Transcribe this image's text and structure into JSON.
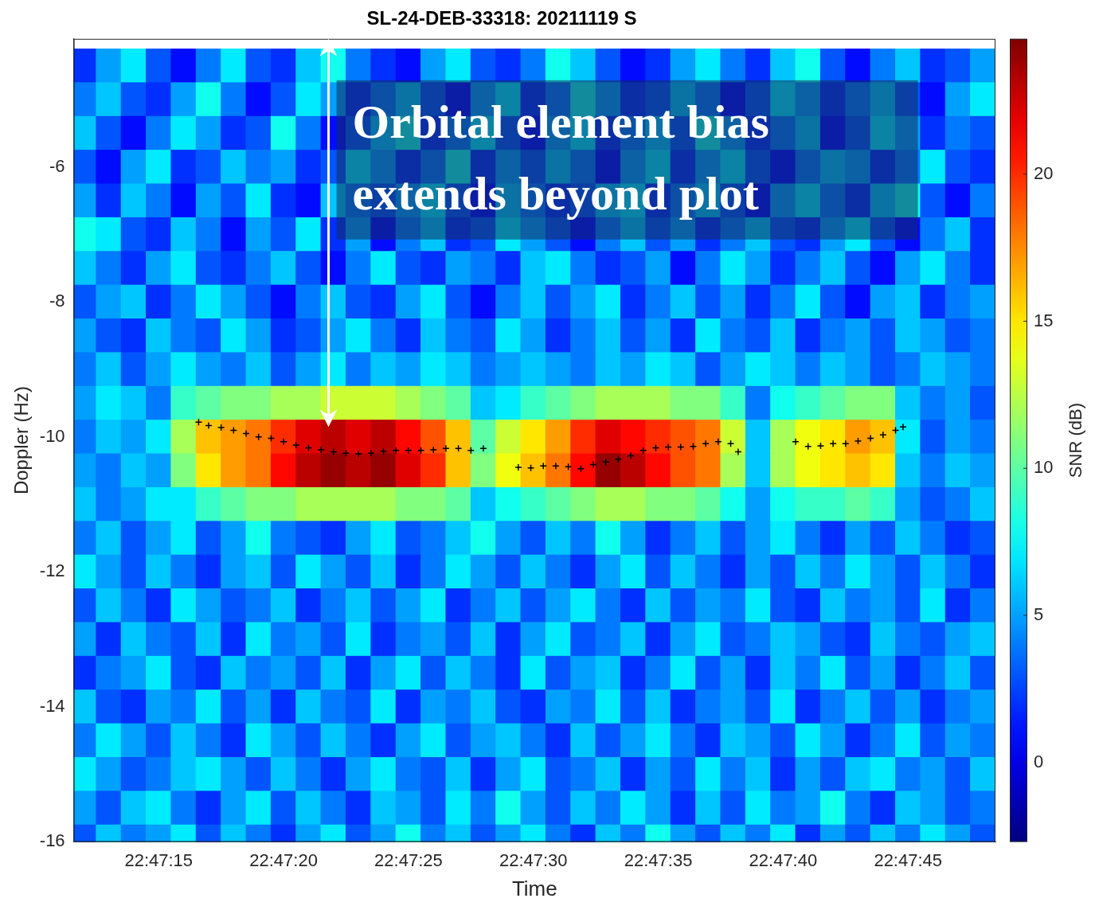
{
  "chart_data": {
    "type": "heatmap",
    "title": "SL-24-DEB-33318: 20211119 S",
    "x_label": "Time",
    "y_label": "Doppler (Hz)",
    "xlim": [
      11.6,
      48.5
    ],
    "xticks": [
      {
        "value": 15,
        "label": "22:47:15"
      },
      {
        "value": 20,
        "label": "22:47:20"
      },
      {
        "value": 25,
        "label": "22:47:25"
      },
      {
        "value": 30,
        "label": "22:47:30"
      },
      {
        "value": 35,
        "label": "22:47:35"
      },
      {
        "value": 40,
        "label": "22:47:40"
      },
      {
        "value": 45,
        "label": "22:47:45"
      }
    ],
    "ylim": [
      -16,
      -4.1
    ],
    "yticks": [
      -16,
      -14,
      -12,
      -10,
      -8,
      -6
    ],
    "grid": false,
    "heatmap": {
      "x": [
        12,
        13,
        14,
        15,
        16,
        17,
        18,
        19,
        20,
        21,
        22,
        23,
        24,
        25,
        26,
        27,
        28,
        29,
        30,
        31,
        32,
        33,
        34,
        35,
        36,
        37,
        38,
        39,
        40,
        41,
        42,
        43,
        44,
        45,
        46,
        47,
        48
      ],
      "y": [
        -4.5,
        -5,
        -5.5,
        -6,
        -6.5,
        -7,
        -7.5,
        -8,
        -8.5,
        -9,
        -9.5,
        -10,
        -10.5,
        -11,
        -11.5,
        -12,
        -12.5,
        -13,
        -13.5,
        -14,
        -14.5,
        -15,
        -15.5,
        -16
      ],
      "cells": [
        [
          2,
          5,
          7,
          3,
          1,
          4,
          7,
          3,
          2,
          6,
          8,
          4,
          2,
          1,
          5,
          7,
          3,
          2,
          4,
          8,
          6,
          3,
          1,
          2,
          5,
          7,
          4,
          2,
          6,
          8,
          3,
          1,
          4,
          6,
          2,
          3,
          5
        ],
        [
          4,
          6,
          3,
          2,
          5,
          8,
          4,
          1,
          3,
          7,
          5,
          2,
          4,
          6,
          3,
          1,
          5,
          7,
          2,
          4,
          8,
          5,
          2,
          3,
          6,
          4,
          1,
          3,
          7,
          5,
          2,
          4,
          6,
          3,
          1,
          5,
          7
        ],
        [
          6,
          3,
          1,
          4,
          7,
          5,
          2,
          3,
          8,
          4,
          1,
          3,
          6,
          8,
          2,
          4,
          7,
          3,
          1,
          5,
          7,
          2,
          4,
          6,
          3,
          8,
          5,
          2,
          4,
          6,
          1,
          3,
          7,
          5,
          2,
          4,
          3
        ],
        [
          3,
          1,
          5,
          7,
          2,
          3,
          6,
          4,
          5,
          2,
          3,
          7,
          5,
          2,
          4,
          8,
          2,
          5,
          3,
          6,
          4,
          1,
          5,
          7,
          2,
          5,
          7,
          3,
          1,
          4,
          6,
          5,
          2,
          4,
          7,
          3,
          2
        ],
        [
          5,
          2,
          6,
          4,
          1,
          5,
          3,
          7,
          2,
          1,
          6,
          4,
          3,
          5,
          7,
          3,
          1,
          6,
          4,
          2,
          3,
          6,
          7,
          2,
          4,
          6,
          3,
          1,
          5,
          7,
          4,
          2,
          6,
          8,
          3,
          1,
          4
        ],
        [
          8,
          7,
          3,
          2,
          6,
          4,
          1,
          5,
          3,
          7,
          2,
          5,
          1,
          4,
          6,
          2,
          3,
          7,
          5,
          3,
          1,
          4,
          6,
          3,
          5,
          2,
          4,
          6,
          3,
          2,
          5,
          7,
          3,
          1,
          4,
          6,
          2
        ],
        [
          6,
          4,
          2,
          5,
          7,
          3,
          2,
          4,
          6,
          3,
          1,
          4,
          7,
          3,
          2,
          5,
          4,
          2,
          6,
          7,
          4,
          2,
          3,
          5,
          1,
          4,
          7,
          5,
          2,
          4,
          6,
          3,
          1,
          5,
          7,
          4,
          2
        ],
        [
          3,
          5,
          6,
          2,
          4,
          7,
          5,
          3,
          1,
          4,
          6,
          3,
          2,
          5,
          7,
          3,
          1,
          4,
          6,
          3,
          5,
          7,
          2,
          4,
          6,
          3,
          5,
          2,
          4,
          7,
          3,
          1,
          5,
          6,
          2,
          4,
          5
        ],
        [
          5,
          3,
          2,
          6,
          4,
          3,
          7,
          5,
          2,
          3,
          5,
          7,
          4,
          2,
          6,
          4,
          3,
          7,
          5,
          2,
          4,
          6,
          3,
          5,
          2,
          7,
          4,
          3,
          6,
          2,
          4,
          5,
          3,
          6,
          5,
          3,
          4
        ],
        [
          4,
          6,
          3,
          5,
          7,
          5,
          4,
          6,
          3,
          5,
          7,
          4,
          6,
          5,
          7,
          6,
          4,
          5,
          6,
          5,
          4,
          6,
          5,
          7,
          6,
          3,
          5,
          7,
          6,
          4,
          6,
          5,
          3,
          4,
          6,
          5,
          4
        ],
        [
          5,
          7,
          6,
          4,
          9,
          10,
          11,
          11,
          12,
          12,
          13,
          13,
          13,
          12,
          11,
          10,
          6,
          7,
          9,
          10,
          11,
          12,
          12,
          12,
          11,
          11,
          9,
          4,
          8,
          9,
          10,
          11,
          11,
          6,
          4,
          5,
          3
        ],
        [
          4,
          6,
          5,
          7,
          12,
          16,
          17,
          18,
          20,
          22,
          23,
          22,
          23,
          21,
          19,
          16,
          10,
          13,
          15,
          17,
          20,
          22,
          21,
          20,
          19,
          18,
          13,
          6,
          12,
          14,
          15,
          17,
          16,
          7,
          3,
          5,
          4
        ],
        [
          5,
          4,
          6,
          5,
          11,
          15,
          17,
          18,
          21,
          23,
          24,
          23,
          24,
          22,
          20,
          16,
          11,
          14,
          16,
          18,
          21,
          24,
          23,
          21,
          19,
          18,
          12,
          6,
          12,
          14,
          15,
          16,
          15,
          6,
          4,
          6,
          5
        ],
        [
          6,
          4,
          5,
          7,
          7,
          9,
          10,
          11,
          11,
          12,
          12,
          12,
          12,
          11,
          11,
          10,
          6,
          8,
          9,
          10,
          11,
          12,
          12,
          11,
          11,
          10,
          8,
          5,
          8,
          9,
          9,
          10,
          9,
          5,
          3,
          4,
          6
        ],
        [
          4,
          6,
          3,
          5,
          7,
          3,
          5,
          8,
          4,
          3,
          2,
          5,
          7,
          3,
          4,
          6,
          8,
          5,
          3,
          6,
          4,
          8,
          5,
          2,
          4,
          6,
          3,
          5,
          7,
          4,
          2,
          5,
          3,
          6,
          4,
          2,
          3
        ],
        [
          7,
          5,
          3,
          6,
          4,
          2,
          5,
          6,
          3,
          7,
          5,
          3,
          6,
          2,
          4,
          7,
          5,
          3,
          6,
          4,
          2,
          5,
          7,
          3,
          6,
          4,
          2,
          5,
          3,
          6,
          4,
          7,
          5,
          3,
          6,
          4,
          2
        ],
        [
          3,
          6,
          4,
          2,
          7,
          5,
          3,
          4,
          6,
          2,
          4,
          6,
          3,
          5,
          7,
          2,
          4,
          6,
          3,
          5,
          7,
          4,
          2,
          6,
          3,
          5,
          4,
          7,
          3,
          2,
          6,
          4,
          5,
          3,
          7,
          2,
          4
        ],
        [
          5,
          2,
          6,
          4,
          3,
          6,
          2,
          7,
          4,
          5,
          3,
          7,
          2,
          4,
          5,
          3,
          6,
          2,
          5,
          7,
          3,
          4,
          6,
          2,
          5,
          7,
          3,
          4,
          6,
          5,
          3,
          2,
          6,
          4,
          3,
          5,
          6
        ],
        [
          2,
          4,
          5,
          7,
          3,
          2,
          6,
          4,
          5,
          3,
          6,
          2,
          5,
          7,
          3,
          6,
          4,
          2,
          7,
          3,
          5,
          6,
          2,
          4,
          7,
          3,
          5,
          2,
          6,
          4,
          7,
          3,
          5,
          2,
          4,
          6,
          3
        ],
        [
          6,
          3,
          2,
          5,
          4,
          7,
          3,
          5,
          2,
          6,
          4,
          3,
          7,
          2,
          5,
          4,
          6,
          3,
          2,
          5,
          4,
          7,
          3,
          6,
          2,
          4,
          5,
          3,
          7,
          2,
          4,
          6,
          3,
          5,
          2,
          4,
          5
        ],
        [
          4,
          7,
          5,
          3,
          6,
          4,
          2,
          7,
          5,
          3,
          6,
          4,
          2,
          5,
          7,
          3,
          5,
          6,
          4,
          2,
          6,
          3,
          5,
          7,
          4,
          2,
          6,
          5,
          3,
          7,
          5,
          2,
          4,
          7,
          3,
          5,
          4
        ],
        [
          7,
          5,
          3,
          4,
          6,
          7,
          5,
          3,
          6,
          4,
          2,
          5,
          7,
          4,
          3,
          6,
          2,
          5,
          7,
          3,
          4,
          6,
          2,
          5,
          3,
          7,
          4,
          6,
          2,
          5,
          3,
          6,
          7,
          4,
          5,
          3,
          6
        ],
        [
          5,
          3,
          6,
          7,
          4,
          2,
          5,
          7,
          3,
          6,
          4,
          2,
          6,
          5,
          3,
          7,
          4,
          8,
          5,
          3,
          6,
          4,
          7,
          5,
          2,
          6,
          3,
          7,
          4,
          5,
          8,
          4,
          2,
          6,
          5,
          3,
          4
        ],
        [
          3,
          6,
          4,
          5,
          7,
          3,
          6,
          4,
          2,
          5,
          7,
          3,
          5,
          8,
          4,
          6,
          3,
          5,
          7,
          4,
          2,
          6,
          4,
          8,
          5,
          3,
          6,
          4,
          7,
          2,
          5,
          3,
          6,
          4,
          7,
          5,
          3
        ]
      ]
    },
    "colorbar": {
      "label": "SNR (dB)",
      "range": [
        -2.7,
        24.6
      ],
      "ticks": [
        0,
        5,
        10,
        15,
        20
      ]
    },
    "series": [
      {
        "type": "scatter",
        "marker": "plus",
        "color": "#000000",
        "x": [
          16.6,
          17.0,
          17.5,
          18.0,
          18.5,
          19.0,
          19.5,
          20.0,
          20.5,
          21.0,
          21.5,
          22.0,
          22.5,
          23.0,
          23.5,
          24.0,
          24.5,
          25.0,
          25.5,
          26.0,
          26.5,
          27.0,
          27.5,
          28.0,
          29.4,
          29.9,
          30.4,
          30.9,
          31.4,
          31.9,
          32.4,
          32.9,
          33.4,
          33.9,
          34.4,
          34.9,
          35.4,
          35.9,
          36.4,
          36.9,
          37.4,
          37.9,
          38.2,
          40.5,
          41.0,
          41.5,
          42.0,
          42.5,
          43.0,
          43.5,
          44.0,
          44.5,
          44.8
        ],
        "values": [
          -9.78,
          -9.83,
          -9.86,
          -9.9,
          -9.95,
          -10.0,
          -10.02,
          -10.07,
          -10.12,
          -10.16,
          -10.19,
          -10.22,
          -10.24,
          -10.25,
          -10.24,
          -10.21,
          -10.2,
          -10.2,
          -10.2,
          -10.19,
          -10.17,
          -10.17,
          -10.2,
          -10.17,
          -10.45,
          -10.46,
          -10.43,
          -10.43,
          -10.44,
          -10.47,
          -10.41,
          -10.37,
          -10.33,
          -10.28,
          -10.2,
          -10.16,
          -10.15,
          -10.15,
          -10.14,
          -10.1,
          -10.07,
          -10.1,
          -10.22,
          -10.07,
          -10.14,
          -10.13,
          -10.1,
          -10.1,
          -10.06,
          -10.02,
          -9.97,
          -9.9,
          -9.85
        ]
      }
    ],
    "annotation": {
      "text": [
        "Orbital element bias",
        "extends beyond plot"
      ],
      "arrow_x": 21.8,
      "arrow_y": [
        -9.85,
        -4.1
      ]
    },
    "legend": false
  }
}
